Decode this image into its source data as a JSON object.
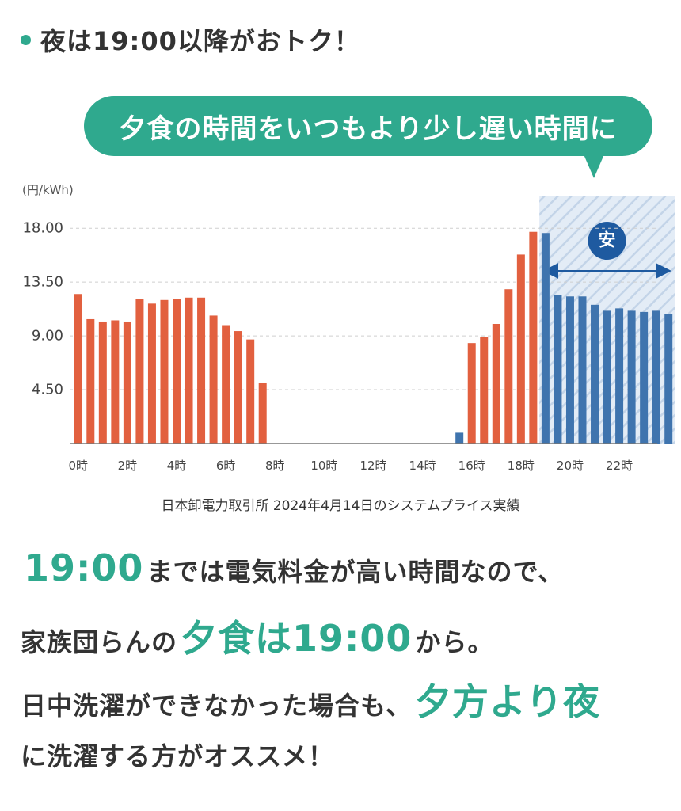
{
  "header": {
    "title": "夜は19:00以降がおトク！"
  },
  "bubble": {
    "text": "夕食の時間をいつもより少し遅い時間に"
  },
  "chart_data": {
    "type": "bar",
    "unit_label": "(円/kWh)",
    "y_ticks": [
      "18.00",
      "13.50",
      "9.00",
      "4.50"
    ],
    "ylim": [
      0,
      20.7
    ],
    "x_tick_labels": [
      "0時",
      "2時",
      "4時",
      "6時",
      "8時",
      "10時",
      "12時",
      "14時",
      "16時",
      "18時",
      "20時",
      "22時"
    ],
    "x_tick_hours": [
      0,
      2,
      4,
      6,
      8,
      10,
      12,
      14,
      16,
      18,
      20,
      22
    ],
    "grid": true,
    "source": "日本卸電力取引所 2024年4月14日のシステムプライス実績",
    "highlight_badge": "安",
    "highlight_from_hour": 19,
    "colors": {
      "day": "#e2603f",
      "night": "#3f74ae",
      "accent": "#2fa98e",
      "badge": "#1e5aa0"
    },
    "values": [
      12.5,
      10.4,
      10.2,
      10.3,
      10.2,
      12.1,
      11.7,
      12.0,
      12.1,
      12.2,
      12.2,
      10.7,
      9.9,
      9.4,
      8.7,
      5.1,
      0,
      0,
      0,
      0,
      0,
      0,
      0,
      0,
      0,
      0,
      0,
      0,
      0,
      0,
      0,
      0.9,
      8.4,
      8.9,
      10.0,
      12.9,
      15.8,
      17.7,
      17.6,
      12.4,
      12.3,
      12.3,
      11.6,
      11.1,
      11.3,
      11.1,
      11.0,
      11.1,
      10.8
    ]
  },
  "body": {
    "l1_hl": "19:00",
    "l1_text": "までは電気料金が高い時間なので、",
    "l2_pre": "家族団らんの",
    "l2_hl": "夕食は19:00",
    "l2_post": "から。",
    "l3_text": "日中洗濯ができなかった場合も、",
    "l3_hl": "夕方より夜",
    "l4_text": "に洗濯する方がオススメ！"
  }
}
